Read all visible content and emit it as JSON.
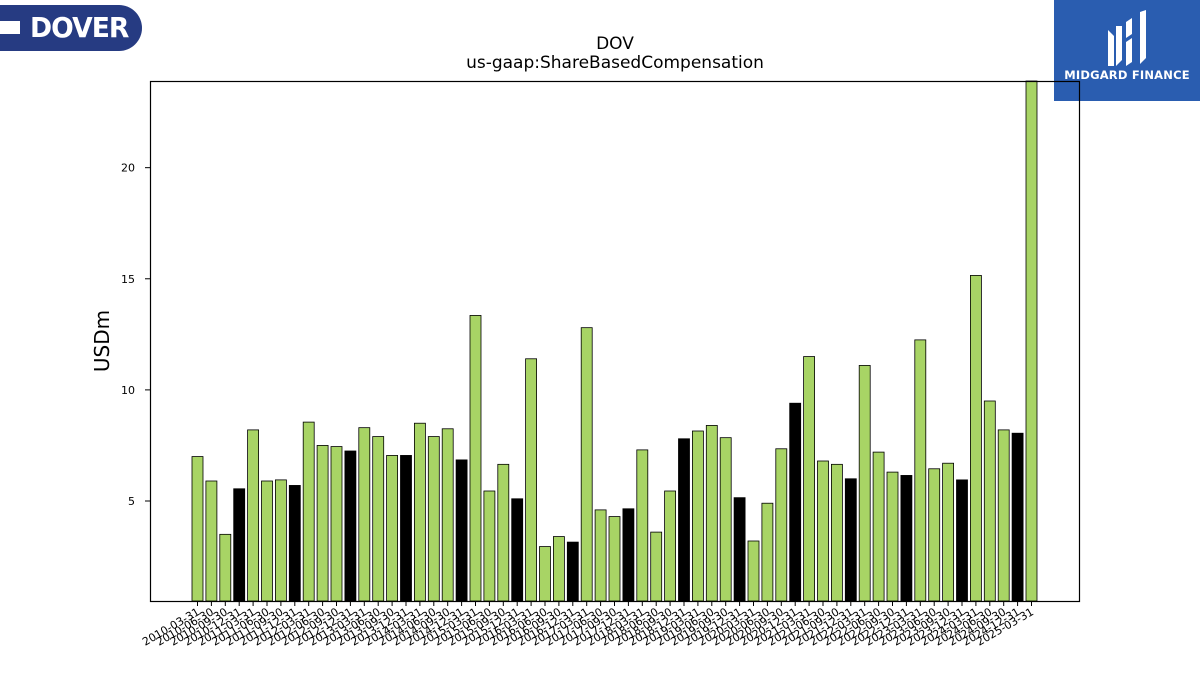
{
  "logos": {
    "left_text": "DOVER",
    "right_text": "MIDGARD FINANCE"
  },
  "colors": {
    "bar_green": "#a8d465",
    "bar_black": "#000000",
    "logo_left_bg": "#263b82",
    "logo_right_bg": "#2a5db0"
  },
  "chart_data": {
    "type": "bar",
    "title": "DOV",
    "subtitle": "us-gaap:ShareBasedCompensation",
    "ylabel": "USDm",
    "xlabel": "",
    "ylim": [
      0.5,
      23.9
    ],
    "yticks": [
      5,
      10,
      15,
      20
    ],
    "grid": false,
    "categories": [
      "2010-03-31",
      "2010-06-30",
      "2010-09-30",
      "2010-12-31",
      "2011-03-31",
      "2011-06-30",
      "2011-09-30",
      "2011-12-31",
      "2012-03-31",
      "2012-06-30",
      "2012-09-30",
      "2012-12-31",
      "2013-03-31",
      "2013-06-30",
      "2013-09-30",
      "2013-12-31",
      "2014-03-31",
      "2014-06-30",
      "2014-09-30",
      "2014-12-31",
      "2015-03-31",
      "2015-06-30",
      "2015-09-30",
      "2015-12-31",
      "2016-03-31",
      "2016-06-30",
      "2016-09-30",
      "2016-12-31",
      "2017-03-31",
      "2017-06-30",
      "2017-09-30",
      "2017-12-31",
      "2018-03-31",
      "2018-06-30",
      "2018-09-30",
      "2018-12-31",
      "2019-03-31",
      "2019-06-30",
      "2019-09-30",
      "2019-12-31",
      "2020-03-31",
      "2020-06-30",
      "2020-09-30",
      "2020-12-31",
      "2021-03-31",
      "2021-06-30",
      "2021-09-30",
      "2021-12-31",
      "2022-03-31",
      "2022-06-30",
      "2022-09-30",
      "2022-12-31",
      "2023-03-31",
      "2023-06-30",
      "2023-09-30",
      "2023-12-31",
      "2024-03-31",
      "2024-06-30",
      "2024-09-30",
      "2024-12-31",
      "2025-03-31"
    ],
    "values": [
      7.0,
      5.9,
      3.5,
      5.55,
      8.2,
      5.9,
      5.95,
      5.7,
      8.55,
      7.5,
      7.45,
      7.25,
      8.3,
      7.9,
      7.05,
      7.05,
      8.5,
      7.9,
      8.25,
      6.85,
      13.35,
      5.45,
      6.65,
      5.1,
      11.4,
      2.95,
      3.4,
      3.15,
      12.8,
      4.6,
      4.3,
      4.65,
      7.3,
      3.6,
      5.45,
      7.8,
      8.15,
      8.4,
      7.85,
      5.15,
      3.2,
      4.9,
      7.35,
      9.4,
      11.5,
      6.8,
      6.65,
      6.0,
      11.1,
      7.2,
      6.3,
      6.15,
      12.25,
      6.45,
      6.7,
      5.95,
      15.15,
      9.5,
      8.2,
      8.05,
      23.9
    ],
    "highlight_quarter_end": "12-31"
  }
}
